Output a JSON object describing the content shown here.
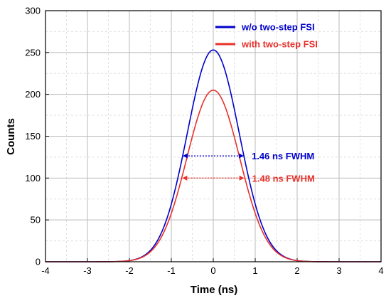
{
  "chart_data": {
    "type": "line",
    "xlabel": "Time (ns)",
    "ylabel": "Counts",
    "xlim": [
      -4,
      4
    ],
    "ylim": [
      0,
      300
    ],
    "xticks": [
      "-4",
      "-3",
      "-2",
      "-1",
      "0",
      "1",
      "2",
      "3",
      "4"
    ],
    "yticks": [
      "0",
      "50",
      "100",
      "150",
      "200",
      "250",
      "300"
    ],
    "grid": true,
    "legend_position": "top-right",
    "series": [
      {
        "name": "w/o two-step FSI",
        "color": "#0000cc",
        "peak_x": 0,
        "peak_y": 253,
        "fwhm_ns": 1.46
      },
      {
        "name": "with two-step FSI",
        "color": "#e8312a",
        "peak_x": 0,
        "peak_y": 205,
        "fwhm_ns": 1.48
      }
    ],
    "annotations": [
      {
        "text": "1.46 ns FWHM",
        "color": "#0000cc",
        "x_start": -0.73,
        "x_end": 0.73,
        "y": 126.5
      },
      {
        "text": "1.48 ns FWHM",
        "color": "#e8312a",
        "x_start": -0.74,
        "x_end": 0.74,
        "y": 100
      }
    ]
  }
}
